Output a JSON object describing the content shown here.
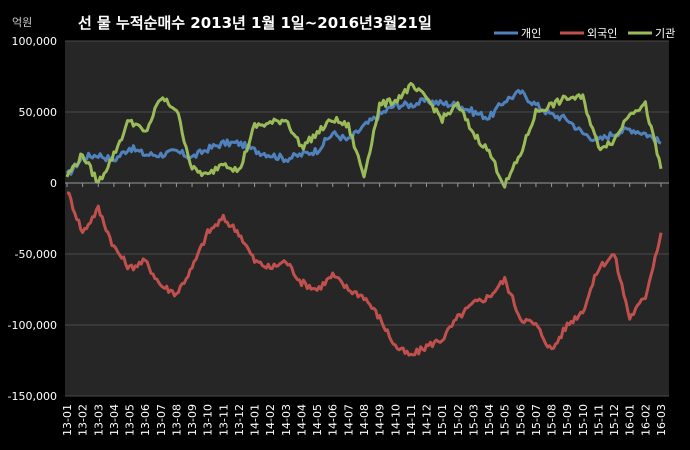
{
  "chart_data": {
    "type": "line",
    "title": "선 물 누적순매수 2013년 1월 1일~2016년3월21일",
    "unit": "억원",
    "categories": [
      "13-01",
      "13-02",
      "13-03",
      "13-04",
      "13-05",
      "13-06",
      "13-07",
      "13-08",
      "13-09",
      "13-10",
      "13-11",
      "13-12",
      "14-01",
      "14-02",
      "14-03",
      "14-04",
      "14-05",
      "14-06",
      "14-07",
      "14-08",
      "14-09",
      "14-10",
      "14-11",
      "14-12",
      "15-01",
      "15-02",
      "15-03",
      "15-04",
      "15-05",
      "15-06",
      "15-07",
      "15-08",
      "15-09",
      "15-10",
      "15-11",
      "15-12",
      "16-01",
      "16-02",
      "16-03"
    ],
    "yticks": [
      "100,000",
      "50,000",
      "0",
      "-50,000",
      "-100,000",
      "-150,000"
    ],
    "ylim": [
      -150000,
      100000
    ],
    "grid": true,
    "legend_position": "top-right",
    "series": [
      {
        "name": "개인",
        "color": "#4f81bd",
        "values": [
          5000,
          18000,
          20000,
          16000,
          25000,
          20000,
          20000,
          22000,
          18000,
          24000,
          28000,
          28000,
          23000,
          20000,
          17000,
          20000,
          23000,
          35000,
          30000,
          40000,
          48000,
          55000,
          55000,
          58000,
          56000,
          55000,
          50000,
          46000,
          58000,
          64000,
          55000,
          48000,
          45000,
          35000,
          30000,
          35000,
          38000,
          35000,
          28000
        ]
      },
      {
        "name": "외국인",
        "color": "#c0504d",
        "values": [
          -5000,
          -35000,
          -18000,
          -45000,
          -60000,
          -55000,
          -72000,
          -78000,
          -60000,
          -35000,
          -25000,
          -35000,
          -55000,
          -60000,
          -55000,
          -70000,
          -75000,
          -65000,
          -75000,
          -80000,
          -95000,
          -115000,
          -122000,
          -115000,
          -110000,
          -95000,
          -85000,
          -80000,
          -68000,
          -95000,
          -100000,
          -118000,
          -100000,
          -90000,
          -60000,
          -50000,
          -95000,
          -80000,
          -35000
        ]
      },
      {
        "name": "기관",
        "color": "#9bbb59",
        "values": [
          5000,
          20000,
          0,
          20000,
          45000,
          35000,
          60000,
          52000,
          10000,
          5000,
          15000,
          8000,
          40000,
          42000,
          45000,
          25000,
          35000,
          45000,
          40000,
          5000,
          55000,
          58000,
          68000,
          60000,
          45000,
          55000,
          35000,
          22000,
          -2000,
          20000,
          50000,
          55000,
          60000,
          60000,
          25000,
          30000,
          50000,
          55000,
          10000
        ]
      }
    ]
  }
}
